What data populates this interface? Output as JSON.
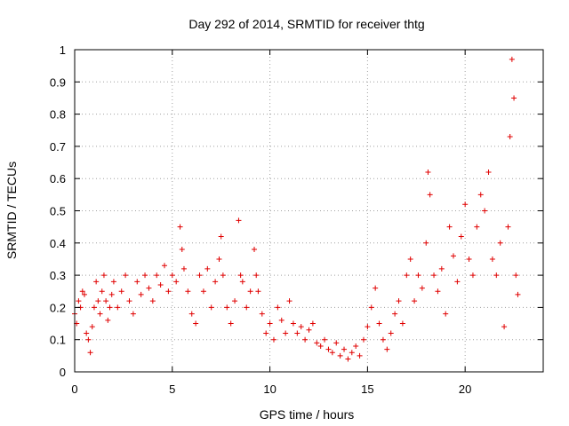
{
  "chart_data": {
    "type": "scatter",
    "title": "Day 292 of 2014, SRMTID for receiver thtg",
    "xlabel": "GPS time / hours",
    "ylabel": "SRMTID / TECUs",
    "xlim": [
      0,
      24
    ],
    "ylim": [
      0,
      1
    ],
    "xticks": [
      0,
      5,
      10,
      15,
      20
    ],
    "xtick_labels": [
      "0",
      "5",
      "10",
      "15",
      "20"
    ],
    "yticks": [
      0,
      0.1,
      0.2,
      0.3,
      0.4,
      0.5,
      0.6,
      0.7,
      0.8,
      0.9,
      1
    ],
    "ytick_labels": [
      "0",
      "0.1",
      "0.2",
      "0.3",
      "0.4",
      "0.5",
      "0.6",
      "0.7",
      "0.8",
      "0.9",
      "1"
    ],
    "grid": true,
    "marker": "plus",
    "color": "#e00000",
    "series": [
      {
        "name": "thtg",
        "points": [
          [
            0.0,
            0.18
          ],
          [
            0.1,
            0.15
          ],
          [
            0.2,
            0.22
          ],
          [
            0.3,
            0.2
          ],
          [
            0.4,
            0.25
          ],
          [
            0.5,
            0.24
          ],
          [
            0.6,
            0.12
          ],
          [
            0.7,
            0.1
          ],
          [
            0.8,
            0.06
          ],
          [
            0.9,
            0.14
          ],
          [
            1.0,
            0.2
          ],
          [
            1.1,
            0.28
          ],
          [
            1.2,
            0.22
          ],
          [
            1.3,
            0.18
          ],
          [
            1.4,
            0.25
          ],
          [
            1.5,
            0.3
          ],
          [
            1.6,
            0.22
          ],
          [
            1.7,
            0.16
          ],
          [
            1.8,
            0.2
          ],
          [
            1.9,
            0.24
          ],
          [
            2.0,
            0.28
          ],
          [
            2.2,
            0.2
          ],
          [
            2.4,
            0.25
          ],
          [
            2.6,
            0.3
          ],
          [
            2.8,
            0.22
          ],
          [
            3.0,
            0.18
          ],
          [
            3.2,
            0.28
          ],
          [
            3.4,
            0.24
          ],
          [
            3.6,
            0.3
          ],
          [
            3.8,
            0.26
          ],
          [
            4.0,
            0.22
          ],
          [
            4.2,
            0.3
          ],
          [
            4.4,
            0.27
          ],
          [
            4.6,
            0.33
          ],
          [
            4.8,
            0.25
          ],
          [
            5.0,
            0.3
          ],
          [
            5.2,
            0.28
          ],
          [
            5.4,
            0.45
          ],
          [
            5.5,
            0.38
          ],
          [
            5.6,
            0.32
          ],
          [
            5.8,
            0.25
          ],
          [
            6.0,
            0.18
          ],
          [
            6.2,
            0.15
          ],
          [
            6.4,
            0.3
          ],
          [
            6.6,
            0.25
          ],
          [
            6.8,
            0.32
          ],
          [
            7.0,
            0.2
          ],
          [
            7.2,
            0.28
          ],
          [
            7.4,
            0.35
          ],
          [
            7.5,
            0.42
          ],
          [
            7.6,
            0.3
          ],
          [
            7.8,
            0.2
          ],
          [
            8.0,
            0.15
          ],
          [
            8.2,
            0.22
          ],
          [
            8.4,
            0.47
          ],
          [
            8.5,
            0.3
          ],
          [
            8.6,
            0.28
          ],
          [
            8.8,
            0.2
          ],
          [
            9.0,
            0.25
          ],
          [
            9.2,
            0.38
          ],
          [
            9.3,
            0.3
          ],
          [
            9.4,
            0.25
          ],
          [
            9.6,
            0.18
          ],
          [
            9.8,
            0.12
          ],
          [
            10.0,
            0.15
          ],
          [
            10.2,
            0.1
          ],
          [
            10.4,
            0.2
          ],
          [
            10.6,
            0.16
          ],
          [
            10.8,
            0.12
          ],
          [
            11.0,
            0.22
          ],
          [
            11.2,
            0.15
          ],
          [
            11.4,
            0.12
          ],
          [
            11.6,
            0.14
          ],
          [
            11.8,
            0.1
          ],
          [
            12.0,
            0.13
          ],
          [
            12.2,
            0.15
          ],
          [
            12.4,
            0.09
          ],
          [
            12.6,
            0.08
          ],
          [
            12.8,
            0.1
          ],
          [
            13.0,
            0.07
          ],
          [
            13.2,
            0.06
          ],
          [
            13.4,
            0.09
          ],
          [
            13.6,
            0.05
          ],
          [
            13.8,
            0.07
          ],
          [
            14.0,
            0.04
          ],
          [
            14.2,
            0.06
          ],
          [
            14.4,
            0.08
          ],
          [
            14.6,
            0.05
          ],
          [
            14.8,
            0.1
          ],
          [
            15.0,
            0.14
          ],
          [
            15.2,
            0.2
          ],
          [
            15.4,
            0.26
          ],
          [
            15.6,
            0.15
          ],
          [
            15.8,
            0.1
          ],
          [
            16.0,
            0.07
          ],
          [
            16.2,
            0.12
          ],
          [
            16.4,
            0.18
          ],
          [
            16.6,
            0.22
          ],
          [
            16.8,
            0.15
          ],
          [
            17.0,
            0.3
          ],
          [
            17.2,
            0.35
          ],
          [
            17.4,
            0.22
          ],
          [
            17.6,
            0.3
          ],
          [
            17.8,
            0.26
          ],
          [
            18.0,
            0.4
          ],
          [
            18.1,
            0.62
          ],
          [
            18.2,
            0.55
          ],
          [
            18.4,
            0.3
          ],
          [
            18.6,
            0.25
          ],
          [
            18.8,
            0.32
          ],
          [
            19.0,
            0.18
          ],
          [
            19.2,
            0.45
          ],
          [
            19.4,
            0.36
          ],
          [
            19.6,
            0.28
          ],
          [
            19.8,
            0.42
          ],
          [
            20.0,
            0.52
          ],
          [
            20.2,
            0.35
          ],
          [
            20.4,
            0.3
          ],
          [
            20.6,
            0.45
          ],
          [
            20.8,
            0.55
          ],
          [
            21.0,
            0.5
          ],
          [
            21.2,
            0.62
          ],
          [
            21.4,
            0.35
          ],
          [
            21.6,
            0.3
          ],
          [
            21.8,
            0.4
          ],
          [
            22.0,
            0.14
          ],
          [
            22.2,
            0.45
          ],
          [
            22.3,
            0.73
          ],
          [
            22.4,
            0.97
          ],
          [
            22.5,
            0.85
          ],
          [
            22.6,
            0.3
          ],
          [
            22.7,
            0.24
          ]
        ]
      }
    ]
  }
}
